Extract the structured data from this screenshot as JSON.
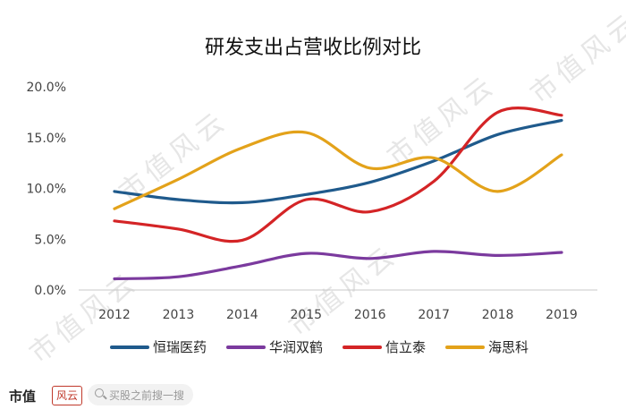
{
  "chart_data": {
    "type": "line",
    "title": "研发支出占营收比例对比",
    "xlabel": "",
    "ylabel": "",
    "categories": [
      "2012",
      "2013",
      "2014",
      "2015",
      "2016",
      "2017",
      "2018",
      "2019"
    ],
    "ylim": [
      0,
      20
    ],
    "yticks": [
      "0.0%",
      "5.0%",
      "10.0%",
      "15.0%",
      "20.0%"
    ],
    "grid": false,
    "legend_position": "bottom",
    "series": [
      {
        "name": "恒瑞医药",
        "color": "#1f5a8c",
        "values": [
          9.7,
          8.9,
          8.6,
          9.4,
          10.6,
          12.7,
          15.3,
          16.7
        ]
      },
      {
        "name": "华润双鹤",
        "color": "#7b3a9e",
        "values": [
          1.1,
          1.3,
          2.4,
          3.6,
          3.1,
          3.8,
          3.4,
          3.7
        ]
      },
      {
        "name": "信立泰",
        "color": "#d42426",
        "values": [
          6.8,
          6.0,
          4.9,
          8.9,
          7.7,
          10.7,
          17.5,
          17.2
        ]
      },
      {
        "name": "海思科",
        "color": "#e3a21a",
        "values": [
          8.0,
          10.9,
          14.0,
          15.5,
          12.0,
          13.0,
          9.7,
          13.3
        ]
      }
    ]
  },
  "watermark": "市值风云",
  "footer": {
    "brand": "市值",
    "brand_mark": "风云",
    "search_placeholder": "买股之前搜一搜"
  }
}
